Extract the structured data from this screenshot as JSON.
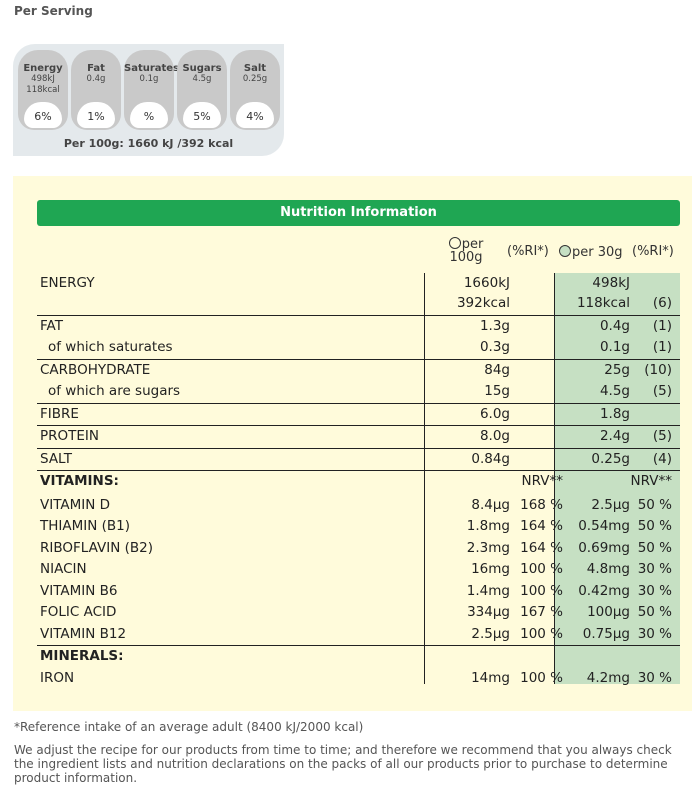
{
  "per_serving": "Per Serving",
  "lights": [
    {
      "name": "Energy",
      "v1": "498kJ",
      "v2": "118kcal",
      "pct": "6%"
    },
    {
      "name": "Fat",
      "v1": "0.4g",
      "v2": "",
      "pct": "1%"
    },
    {
      "name": "Saturates",
      "v1": "0.1g",
      "v2": "",
      "pct": "%"
    },
    {
      "name": "Sugars",
      "v1": "4.5g",
      "v2": "",
      "pct": "5%"
    },
    {
      "name": "Salt",
      "v1": "0.25g",
      "v2": "",
      "pct": "4%"
    }
  ],
  "per100": "Per 100g: 1660 kJ /392 kcal",
  "title": "Nutrition Information",
  "headers": {
    "per100a": "per",
    "per100b": "100g",
    "ri1": "(%RI*)",
    "per30": "per 30g",
    "ri2": "(%RI*)"
  },
  "rows": [
    {
      "l": "ENERGY",
      "a": "1660kJ",
      "c": "498kJ",
      "b": "",
      "d": ""
    },
    {
      "l": "",
      "a": "392kcal",
      "c": "118kcal",
      "d": "(6)",
      "sep": true
    },
    {
      "l": "FAT",
      "a": "1.3g",
      "c": "0.4g",
      "d": "(1)"
    },
    {
      "l": "of which saturates",
      "a": "0.3g",
      "c": "0.1g",
      "d": "(1)",
      "ind": true,
      "sep": true
    },
    {
      "l": "CARBOHYDRATE",
      "a": "84g",
      "c": "25g",
      "d": "(10)"
    },
    {
      "l": "of which are sugars",
      "a": "15g",
      "c": "4.5g",
      "d": "(5)",
      "ind": true,
      "sep": true
    },
    {
      "l": "FIBRE",
      "a": "6.0g",
      "c": "1.8g",
      "d": "",
      "sep": true
    },
    {
      "l": "PROTEIN",
      "a": "8.0g",
      "c": "2.4g",
      "d": "(5)",
      "sep": true
    },
    {
      "l": "SALT",
      "a": "0.84g",
      "c": "0.25g",
      "d": "(4)",
      "sep": true
    },
    {
      "l": "VITAMINS:",
      "b": "NRV**",
      "d": "NRV**",
      "bold": true
    },
    {
      "l": "VITAMIN D",
      "a": "8.4µg",
      "b": "168 %",
      "c": "2.5µg",
      "d": "50 %"
    },
    {
      "l": "THIAMIN (B1)",
      "a": "1.8mg",
      "b": "164 %",
      "c": "0.54mg",
      "d": "50 %"
    },
    {
      "l": "RIBOFLAVIN (B2)",
      "a": "2.3mg",
      "b": "164 %",
      "c": "0.69mg",
      "d": "50 %"
    },
    {
      "l": "NIACIN",
      "a": "16mg",
      "b": "100 %",
      "c": "4.8mg",
      "d": "30 %"
    },
    {
      "l": "VITAMIN B6",
      "a": "1.4mg",
      "b": "100 %",
      "c": "0.42mg",
      "d": "30 %"
    },
    {
      "l": "FOLIC ACID",
      "a": "334µg",
      "b": "167 %",
      "c": "100µg",
      "d": "50 %"
    },
    {
      "l": "VITAMIN B12",
      "a": "2.5µg",
      "b": "100 %",
      "c": "0.75µg",
      "d": "30 %",
      "sep": true
    },
    {
      "l": "MINERALS:",
      "bold": true
    },
    {
      "l": "IRON",
      "a": "14mg",
      "b": "100 %",
      "c": "4.2mg",
      "d": "30 %"
    }
  ],
  "footnote1": "*Reference intake of an average adult (8400 kJ/2000 kcal)",
  "footnote2": "We adjust the recipe for our products from time to time; and therefore we recommend that you always check the ingredient lists and nutrition declarations on the packs of all our products prior to purchase to determine product information."
}
